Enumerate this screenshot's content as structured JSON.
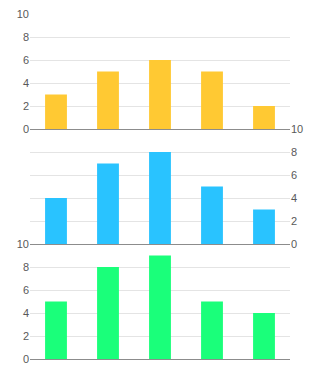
{
  "chart_data": [
    {
      "type": "bar",
      "categories": [
        null,
        null,
        null,
        null,
        null
      ],
      "values": [
        3,
        5,
        6,
        5,
        2
      ],
      "color": "#ffc933",
      "ylim": [
        0,
        10
      ],
      "yticks": [
        0,
        2,
        4,
        6,
        8,
        10
      ],
      "grid": true,
      "tick_labels": "y"
    },
    {
      "type": "bar",
      "categories": [
        null,
        null,
        null,
        null,
        null
      ],
      "values": [
        4,
        7,
        8,
        5,
        3
      ],
      "color": "#29c3ff",
      "ylim": [
        0,
        10
      ],
      "yticks": [
        0,
        2,
        4,
        6,
        8,
        10
      ],
      "grid": true,
      "tick_labels": "y"
    },
    {
      "type": "bar",
      "categories": [
        null,
        null,
        null,
        null,
        null
      ],
      "values": [
        5,
        8,
        9,
        5,
        4
      ],
      "color": "#1aff7a",
      "ylim": [
        0,
        10
      ],
      "yticks": [
        0,
        2,
        4,
        6,
        8,
        10
      ],
      "grid": true,
      "tick_labels": "y"
    }
  ]
}
